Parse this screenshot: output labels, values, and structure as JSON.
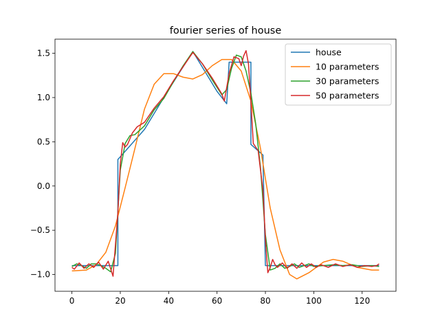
{
  "chart_data": {
    "type": "line",
    "title": "fourier series of house",
    "xlabel": "",
    "ylabel": "",
    "xlim": [
      -7,
      134
    ],
    "ylim": [
      -1.19,
      1.66
    ],
    "xticks": [
      0,
      20,
      40,
      60,
      80,
      100,
      120
    ],
    "xtick_labels": [
      "0",
      "20",
      "40",
      "60",
      "80",
      "100",
      "120"
    ],
    "yticks": [
      -1.0,
      -0.5,
      0.0,
      0.5,
      1.0,
      1.5
    ],
    "ytick_labels": [
      "−1.0",
      "−0.5",
      "0.0",
      "0.5",
      "1.0",
      "1.5"
    ],
    "grid": false,
    "legend_position": "top-right",
    "series": [
      {
        "name": "house",
        "color": "#1f77b4",
        "x": [
          0,
          19,
          19,
          20,
          30,
          40,
          50,
          60,
          64,
          64,
          65,
          65,
          74,
          74,
          79,
          79,
          80,
          80,
          127
        ],
        "y": [
          -0.9,
          -0.9,
          0.3,
          0.33,
          0.64,
          1.09,
          1.52,
          1.07,
          0.93,
          0.93,
          1.4,
          1.4,
          1.4,
          0.47,
          0.35,
          0.31,
          -0.9,
          -0.9,
          -0.9
        ]
      },
      {
        "name": "10 parameters",
        "color": "#ff7f0e",
        "x": [
          0,
          6,
          10,
          14,
          18,
          22,
          26,
          30,
          34,
          38,
          42,
          46,
          50,
          54,
          58,
          62,
          66,
          70,
          74,
          78,
          82,
          86,
          90,
          93,
          98,
          104,
          108,
          112,
          118,
          124,
          127
        ],
        "y": [
          -0.96,
          -0.95,
          -0.89,
          -0.75,
          -0.45,
          -0.02,
          0.42,
          0.87,
          1.15,
          1.27,
          1.27,
          1.23,
          1.21,
          1.26,
          1.36,
          1.43,
          1.43,
          1.3,
          0.96,
          0.42,
          -0.25,
          -0.72,
          -1.0,
          -1.05,
          -0.98,
          -0.86,
          -0.83,
          -0.85,
          -0.92,
          -0.95,
          -0.95
        ]
      },
      {
        "name": "30 parameters",
        "color": "#2ca02c",
        "x": [
          0,
          2,
          4,
          6,
          8,
          10,
          12,
          14,
          16,
          18,
          20,
          22,
          24,
          26,
          28,
          30,
          34,
          38,
          42,
          46,
          50,
          54,
          58,
          62,
          64,
          66,
          68,
          70,
          72,
          74,
          76,
          78,
          80,
          82,
          84,
          86,
          88,
          90,
          92,
          94,
          96,
          98,
          100,
          104,
          108,
          112,
          116,
          120,
          124,
          127
        ],
        "y": [
          -0.91,
          -0.88,
          -0.9,
          -0.93,
          -0.88,
          -0.88,
          -0.9,
          -0.93,
          -0.97,
          -0.76,
          0.18,
          0.48,
          0.57,
          0.58,
          0.63,
          0.68,
          0.86,
          0.99,
          1.18,
          1.36,
          1.52,
          1.38,
          1.2,
          1.03,
          1.09,
          1.33,
          1.48,
          1.46,
          1.3,
          1.05,
          0.7,
          0.2,
          -0.55,
          -0.95,
          -0.93,
          -0.88,
          -0.93,
          -0.91,
          -0.88,
          -0.92,
          -0.9,
          -0.88,
          -0.91,
          -0.9,
          -0.89,
          -0.9,
          -0.89,
          -0.91,
          -0.9,
          -0.91
        ]
      },
      {
        "name": "50 parameters",
        "color": "#d62728",
        "x": [
          0,
          1,
          3,
          5,
          7,
          9,
          11,
          13,
          15,
          17,
          19,
          20,
          21,
          22,
          23,
          25,
          27,
          30,
          34,
          38,
          42,
          46,
          50,
          54,
          58,
          62,
          63,
          65,
          67,
          69,
          70,
          71,
          72,
          73,
          74,
          75,
          77,
          79,
          80,
          81,
          82,
          83,
          84,
          85,
          87,
          89,
          91,
          93,
          95,
          97,
          99,
          101,
          103,
          106,
          109,
          112,
          115,
          118,
          121,
          124,
          126,
          127
        ],
        "y": [
          -0.92,
          -0.94,
          -0.87,
          -0.93,
          -0.88,
          -0.92,
          -0.86,
          -0.94,
          -0.85,
          -1.02,
          -0.3,
          0.25,
          0.49,
          0.44,
          0.47,
          0.6,
          0.67,
          0.72,
          0.88,
          1.01,
          1.19,
          1.35,
          1.51,
          1.38,
          1.22,
          1.04,
          0.96,
          1.27,
          1.46,
          1.44,
          1.36,
          1.47,
          1.53,
          1.38,
          0.95,
          0.48,
          0.4,
          -0.05,
          -0.6,
          -0.98,
          -0.92,
          -0.83,
          -0.89,
          -0.92,
          -0.87,
          -0.93,
          -0.88,
          -0.93,
          -0.87,
          -0.92,
          -0.88,
          -0.92,
          -0.89,
          -0.92,
          -0.88,
          -0.91,
          -0.89,
          -0.92,
          -0.9,
          -0.91,
          -0.9,
          -0.88
        ]
      }
    ]
  }
}
